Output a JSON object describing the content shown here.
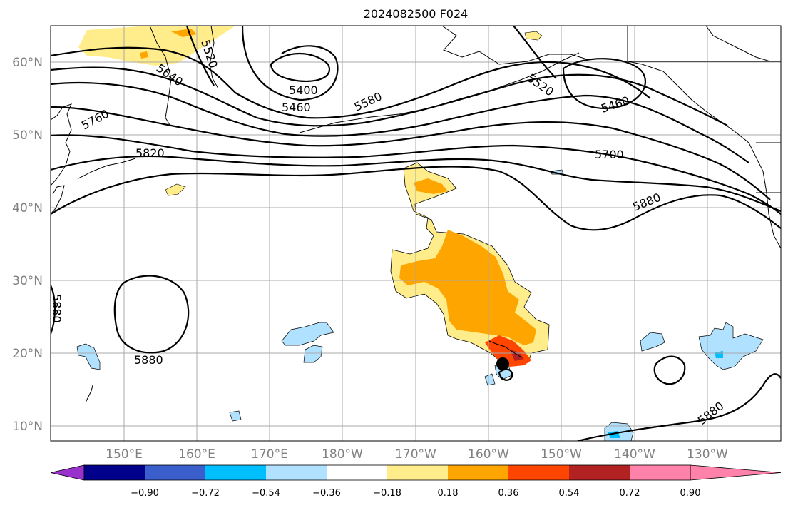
{
  "title": "2024082500 F024",
  "lat_ticks": [
    "60°N",
    "50°N",
    "40°N",
    "30°N",
    "20°N",
    "10°N"
  ],
  "lon_ticks": [
    "150°E",
    "160°E",
    "170°E",
    "180°W",
    "170°W",
    "160°W",
    "150°W",
    "140°W",
    "130°W"
  ],
  "colorbar": {
    "colors": [
      "#9932cc",
      "#00008b",
      "#3a5fcd",
      "#00bfff",
      "#b0e2ff",
      "#ffffff",
      "#ffec8b",
      "#ffa500",
      "#ff4500",
      "#b22222",
      "#ff82ab"
    ],
    "ticks": [
      "−0.90",
      "−0.72",
      "−0.54",
      "−0.36",
      "−0.18",
      "0.18",
      "0.36",
      "0.54",
      "0.72",
      "0.90"
    ]
  },
  "contour_labels": [
    "5520",
    "5640",
    "5400",
    "5460",
    "5580",
    "5520",
    "5460",
    "5760",
    "5820",
    "5700",
    "5880",
    "5880",
    "5880",
    "5880"
  ]
}
